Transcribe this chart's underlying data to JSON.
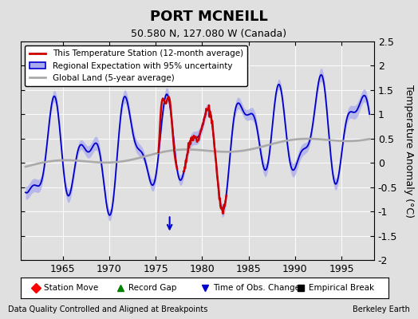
{
  "title": "PORT MCNEILL",
  "subtitle": "50.580 N, 127.080 W (Canada)",
  "ylabel": "Temperature Anomaly (°C)",
  "footer_left": "Data Quality Controlled and Aligned at Breakpoints",
  "footer_right": "Berkeley Earth",
  "xlim": [
    1960.5,
    1998.5
  ],
  "ylim": [
    -2.0,
    2.5
  ],
  "yticks": [
    -2,
    -1.5,
    -1,
    -0.5,
    0,
    0.5,
    1,
    1.5,
    2,
    2.5
  ],
  "xticks": [
    1965,
    1970,
    1975,
    1980,
    1985,
    1990,
    1995
  ],
  "bg_color": "#e0e0e0",
  "plot_bg_color": "#e0e0e0",
  "regional_color": "#0000cc",
  "regional_uncertainty_color": "#aaaaee",
  "station_color": "#cc0000",
  "global_color": "#aaaaaa",
  "obs_change_year": 1976.5,
  "obs_change_value": -1.45
}
